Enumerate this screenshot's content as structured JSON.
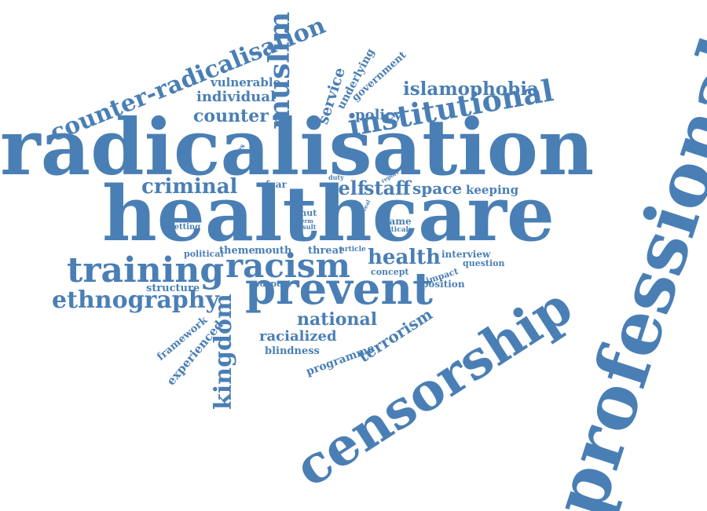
{
  "color": "#4a7fb5",
  "words": [
    "professional",
    "radicalisation",
    "healthcare",
    "censorship",
    "prevent",
    "racism",
    "training",
    "institutional",
    "counter-radicalisation",
    "muslim",
    "ethnography",
    "islamophobia",
    "kingdom",
    "criminal",
    "self",
    "staff",
    "health",
    "space",
    "national",
    "terrorism",
    "counter",
    "individual",
    "vulnerable",
    "service",
    "underlying",
    "government",
    "policy",
    "keeping",
    "racialized",
    "programme",
    "blindness",
    "experienced",
    "framework",
    "structure",
    "political",
    "theme",
    "mouth",
    "threat",
    "article",
    "interview",
    "question",
    "impact",
    "position",
    "concept",
    "suspect",
    "frame",
    "critical",
    "duty",
    "fear",
    "shut",
    "term",
    "result",
    "colour",
    "reveal",
    "setting",
    "policies",
    "report",
    "able"
  ]
}
